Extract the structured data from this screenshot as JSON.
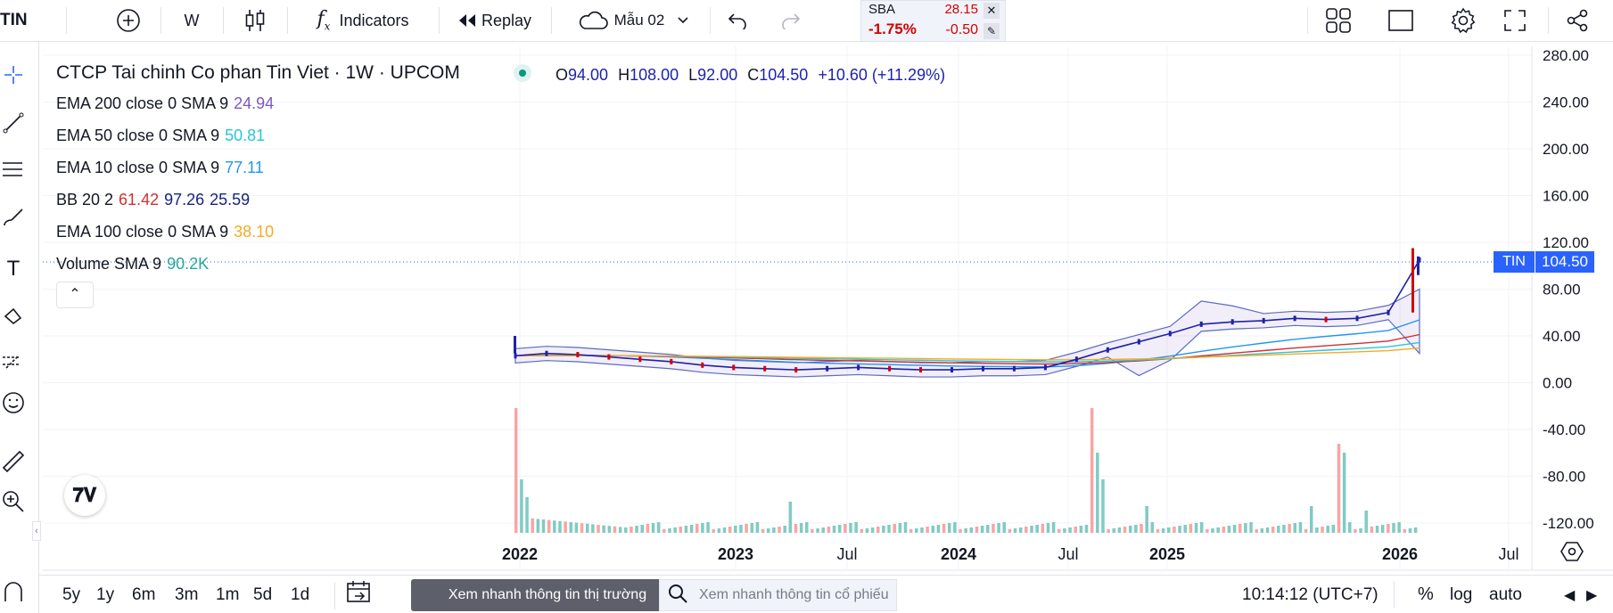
{
  "symbol_label": "TIN",
  "toolbar": {
    "interval": "W",
    "indicators_label": "Indicators",
    "replay_label": "Replay",
    "layout_label": "Mẫu 02"
  },
  "ticker_widget": {
    "symbol": "SBA",
    "price": "28.15",
    "change_pct": "-1.75%",
    "change": "-0.50"
  },
  "legend": {
    "title": "CTCP Tai chinh Co phan Tin Viet · 1W · UPCOM",
    "ohlc": {
      "o_label": "O",
      "o": "94.00",
      "h_label": "H",
      "h": "108.00",
      "l_label": "L",
      "l": "92.00",
      "c_label": "C",
      "c": "104.50",
      "change": "+10.60 (+11.29%)"
    },
    "indicators": [
      {
        "name": "EMA 200 close 0 SMA 9",
        "values": [
          "24.94"
        ],
        "colors": [
          "#7e57c2"
        ]
      },
      {
        "name": "EMA 50 close 0 SMA 9",
        "values": [
          "50.81"
        ],
        "colors": [
          "#26c6da"
        ]
      },
      {
        "name": "EMA 10 close 0 SMA 9",
        "values": [
          "77.11"
        ],
        "colors": [
          "#2196f3"
        ]
      },
      {
        "name": "BB 20 2",
        "values": [
          "61.42",
          "97.26",
          "25.59"
        ],
        "colors": [
          "#d32f2f",
          "#1a237e",
          "#1a237e"
        ]
      },
      {
        "name": "EMA 100 close 0 SMA 9",
        "values": [
          "38.10"
        ],
        "colors": [
          "#f9a825"
        ]
      },
      {
        "name": "Volume SMA 9",
        "values": [
          "90.2K"
        ],
        "colors": [
          "#26a69a"
        ]
      }
    ]
  },
  "price_axis": [
    "280.00",
    "240.00",
    "200.00",
    "160.00",
    "120.00",
    "80.00",
    "40.00",
    "0.00",
    "-40.00",
    "-80.00",
    "-120.00"
  ],
  "time_axis": [
    {
      "label": "2022",
      "bold": true
    },
    {
      "label": "2023",
      "bold": true
    },
    {
      "label": "Jul",
      "bold": false
    },
    {
      "label": "2024",
      "bold": true
    },
    {
      "label": "Jul",
      "bold": false
    },
    {
      "label": "2025",
      "bold": true
    },
    {
      "label": "2026",
      "bold": true
    },
    {
      "label": "Jul",
      "bold": false
    }
  ],
  "last_price": {
    "symbol": "TIN",
    "price": "104.50"
  },
  "bottom": {
    "ranges": [
      "5y",
      "1y",
      "6m",
      "3m",
      "1m",
      "5d",
      "1d"
    ],
    "market_btn": "Xem nhanh thông tin thị trường",
    "search_placeholder": "Xem nhanh thông tin cổ phiếu",
    "clock": "10:14:12 (UTC+7)",
    "pct": "%",
    "log": "log",
    "auto": "auto"
  },
  "colors": {
    "up": "#1e22aa",
    "down": "#d50000",
    "accent": "#2962ff",
    "vol_up": "#80cbc4",
    "vol_down": "#f8a5a5"
  },
  "chart_data": {
    "type": "candlestick",
    "title": "CTCP Tai chinh Co phan Tin Viet · 1W · UPCOM",
    "ylim": [
      -130,
      285
    ],
    "x_ticks": [
      "2022",
      "2023",
      "Jul",
      "2024",
      "Jul",
      "2025",
      "2026",
      "Jul"
    ],
    "series": [
      {
        "name": "Price close",
        "approx_closes": [
          23,
          25,
          24,
          22,
          20,
          18,
          15,
          13,
          12,
          11,
          12,
          13,
          12,
          11,
          11,
          12,
          12,
          13,
          20,
          28,
          35,
          42,
          50,
          52,
          53,
          55,
          54,
          55,
          60,
          105
        ]
      },
      {
        "name": "Volume",
        "approx": "spikes near 2022 start, early 2025, and early 2026"
      }
    ]
  }
}
